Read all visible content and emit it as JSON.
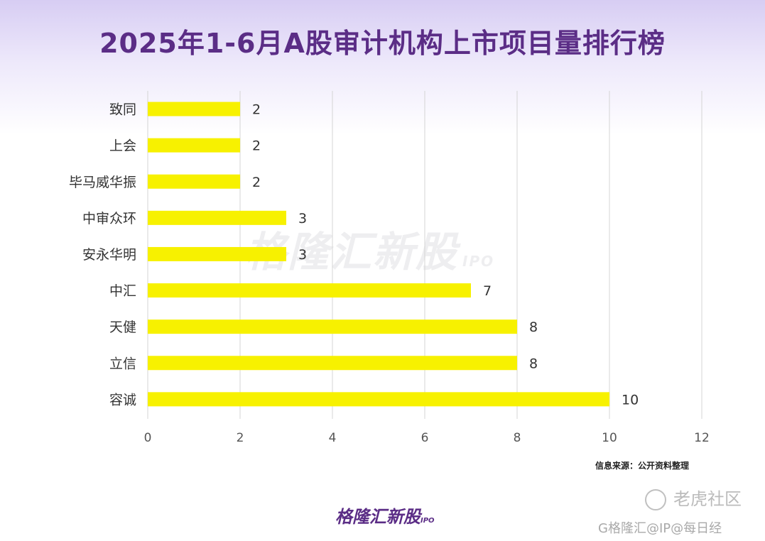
{
  "title": "2025年1-6月A股审计机构上市项目量排行榜",
  "source": "信息来源：公开资料整理",
  "watermark": {
    "text": "格隆汇新股",
    "sub": "IPO"
  },
  "brand": {
    "text": "格隆汇新股",
    "sub": "IPO"
  },
  "corner_text": "老虎社区",
  "credit_text": "G格隆汇@IP@每日经",
  "colors": {
    "bar": "#f7f100",
    "title": "#5b2d86",
    "grid": "#d4d4d4"
  },
  "chart_data": {
    "type": "bar",
    "orientation": "horizontal",
    "categories": [
      "致同",
      "上会",
      "毕马威华振",
      "中审众环",
      "安永华明",
      "中汇",
      "天健",
      "立信",
      "容诚"
    ],
    "values": [
      2,
      2,
      2,
      3,
      3,
      7,
      8,
      8,
      10
    ],
    "xlim": [
      0,
      12
    ],
    "xticks": [
      "0",
      "2",
      "4",
      "6",
      "8",
      "10",
      "12"
    ],
    "grid": true,
    "legend": false,
    "data_labels": true
  }
}
